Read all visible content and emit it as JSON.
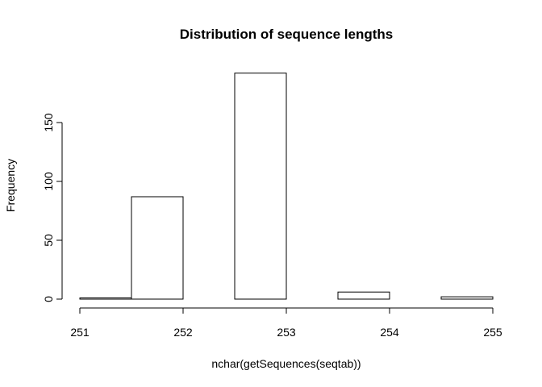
{
  "chart_data": {
    "type": "bar",
    "title": "Distribution of sequence lengths",
    "xlabel": "nchar(getSequences(seqtab))",
    "ylabel": "Frequency",
    "xlim": [
      251,
      255
    ],
    "ylim": [
      0,
      195
    ],
    "x_ticks": [
      251,
      252,
      253,
      254,
      255
    ],
    "y_ticks": [
      0,
      50,
      100,
      150
    ],
    "bins": [
      {
        "start": 251.0,
        "end": 251.5,
        "value": 1
      },
      {
        "start": 251.5,
        "end": 252.0,
        "value": 87
      },
      {
        "start": 252.0,
        "end": 252.5,
        "value": 0
      },
      {
        "start": 252.5,
        "end": 253.0,
        "value": 192
      },
      {
        "start": 253.0,
        "end": 253.5,
        "value": 0
      },
      {
        "start": 253.5,
        "end": 254.0,
        "value": 6
      },
      {
        "start": 254.0,
        "end": 254.5,
        "value": 0
      },
      {
        "start": 254.5,
        "end": 255.0,
        "value": 2
      }
    ],
    "grid": false,
    "colors": {
      "bar_fill": "#ffffff",
      "bar_stroke": "#000000"
    }
  }
}
